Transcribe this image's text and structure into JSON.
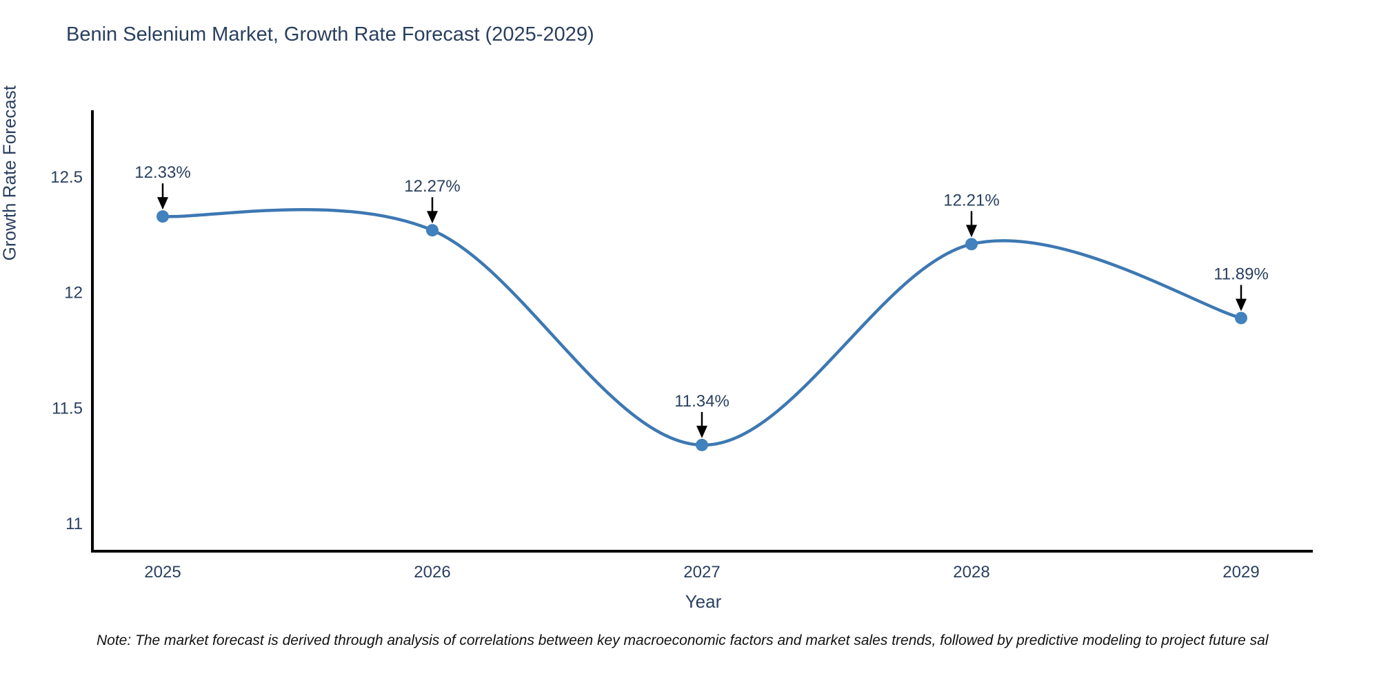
{
  "page": {
    "note": "Note: The market forecast is derived through analysis of correlations between key macroeconomic factors and market sales trends, followed by predictive modeling to project future sal"
  },
  "chart_data": {
    "type": "line",
    "title": "Benin Selenium Market, Growth Rate Forecast (2025-2029)",
    "x": [
      2025,
      2026,
      2027,
      2028,
      2029
    ],
    "xtick_labels": [
      "2025",
      "2026",
      "2027",
      "2028",
      "2029"
    ],
    "series": [
      {
        "name": "Growth Rate Forecast",
        "values": [
          12.33,
          12.27,
          11.34,
          12.21,
          11.89
        ]
      }
    ],
    "point_labels": [
      "12.33%",
      "12.27%",
      "11.34%",
      "12.21%",
      "11.89%"
    ],
    "xlabel": "Year",
    "ylabel": "Growth Rate Forecast",
    "yticks": [
      11,
      11.5,
      12,
      12.5
    ],
    "ytick_labels": [
      "11",
      "11.5",
      "12",
      "12.5"
    ],
    "ylim": [
      10.88,
      12.79
    ],
    "grid": false,
    "line_shape": "spline",
    "legend_position": "none",
    "colors": {
      "line": "#3d78b2",
      "marker": "#4181bd",
      "axis": "#000000",
      "text": "#2a3f5f",
      "annotation_text": "#2a3f5f",
      "annotation_arrow": "#000000",
      "note_text": "#111111",
      "background": "#ffffff"
    }
  }
}
